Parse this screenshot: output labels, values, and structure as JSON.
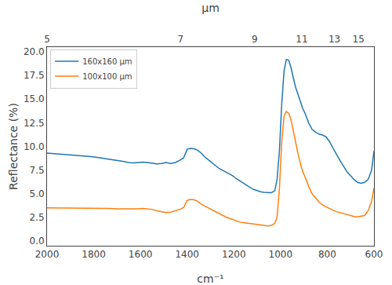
{
  "chart_data": {
    "type": "line",
    "x_label": "cm⁻¹",
    "x2_label": "μm",
    "y_label": "Reflectance (%)",
    "xlim": [
      2000,
      600
    ],
    "xticks": [
      2000,
      1800,
      1600,
      1400,
      1200,
      1000,
      800,
      600
    ],
    "x2lim": [
      2000,
      600
    ],
    "x2ticks": [
      {
        "value": 2000.0,
        "label": "5"
      },
      {
        "value": 1428.5714285714287,
        "label": "7"
      },
      {
        "value": 1111.111111111111,
        "label": "9"
      },
      {
        "value": 909.0909090909091,
        "label": "11"
      },
      {
        "value": 769.2307692307693,
        "label": "13"
      },
      {
        "value": 666.6666666666666,
        "label": "15"
      }
    ],
    "ylim": [
      -0.5,
      20.5
    ],
    "yticks": [
      {
        "value": 0.0,
        "label": "0.0"
      },
      2.5,
      {
        "value": 5.0,
        "label": "5.0"
      },
      7.5,
      {
        "value": 10.0,
        "label": "10.0"
      },
      12.5,
      {
        "value": 15.0,
        "label": "15.0"
      },
      17.5,
      {
        "value": 20.0,
        "label": "20.0"
      }
    ],
    "grid": false,
    "legend": "upper left",
    "x": [
      2000,
      1970,
      1940,
      1910,
      1880,
      1850,
      1820,
      1790,
      1760,
      1730,
      1700,
      1670,
      1650,
      1630,
      1610,
      1590,
      1570,
      1550,
      1530,
      1510,
      1490,
      1470,
      1450,
      1430,
      1415,
      1400,
      1385,
      1370,
      1355,
      1340,
      1325,
      1310,
      1295,
      1280,
      1265,
      1250,
      1235,
      1220,
      1205,
      1190,
      1175,
      1160,
      1145,
      1130,
      1115,
      1100,
      1085,
      1070,
      1055,
      1040,
      1025,
      1015,
      1005,
      995,
      985,
      975,
      965,
      955,
      945,
      935,
      925,
      915,
      905,
      895,
      880,
      865,
      850,
      835,
      820,
      805,
      790,
      775,
      760,
      745,
      730,
      715,
      700,
      685,
      670,
      655,
      640,
      625,
      610,
      600
    ],
    "series": [
      {
        "name": "160x160 μm",
        "color": "#1f77b4",
        "values": [
          9.3,
          9.25,
          9.2,
          9.15,
          9.05,
          9.0,
          8.95,
          8.85,
          8.75,
          8.65,
          8.55,
          8.4,
          8.3,
          8.25,
          8.3,
          8.35,
          8.3,
          8.2,
          8.15,
          8.2,
          8.3,
          8.2,
          8.3,
          8.55,
          8.8,
          9.7,
          9.8,
          9.75,
          9.6,
          9.3,
          8.9,
          8.6,
          8.3,
          8.0,
          7.7,
          7.5,
          7.3,
          7.1,
          6.9,
          6.6,
          6.35,
          6.1,
          5.85,
          5.65,
          5.45,
          5.3,
          5.2,
          5.15,
          5.1,
          5.1,
          5.3,
          6.5,
          9.5,
          14.5,
          18.0,
          19.2,
          19.1,
          18.3,
          17.2,
          16.2,
          15.5,
          14.8,
          14.0,
          13.5,
          12.5,
          11.8,
          11.5,
          11.3,
          11.2,
          11.0,
          10.5,
          9.8,
          9.1,
          8.5,
          7.9,
          7.3,
          6.9,
          6.5,
          6.2,
          6.1,
          6.2,
          6.5,
          7.5,
          9.5
        ]
      },
      {
        "name": "100x100 μm",
        "color": "#ff7f0e",
        "values": [
          3.5,
          3.5,
          3.5,
          3.5,
          3.5,
          3.5,
          3.5,
          3.5,
          3.45,
          3.45,
          3.4,
          3.4,
          3.35,
          3.35,
          3.4,
          3.45,
          3.4,
          3.35,
          3.2,
          3.1,
          3.0,
          3.05,
          3.2,
          3.35,
          3.55,
          4.3,
          4.4,
          4.35,
          4.2,
          3.9,
          3.7,
          3.5,
          3.35,
          3.1,
          2.9,
          2.7,
          2.55,
          2.4,
          2.25,
          2.1,
          2.0,
          1.95,
          1.9,
          1.85,
          1.8,
          1.75,
          1.7,
          1.65,
          1.6,
          1.65,
          1.85,
          2.5,
          5.5,
          10.5,
          13.2,
          13.7,
          13.5,
          12.8,
          11.5,
          10.3,
          9.2,
          8.2,
          7.3,
          6.8,
          5.8,
          5.0,
          4.5,
          4.1,
          3.8,
          3.6,
          3.4,
          3.25,
          3.1,
          3.0,
          2.9,
          2.75,
          2.65,
          2.6,
          2.55,
          2.6,
          2.7,
          3.2,
          4.2,
          5.6
        ]
      }
    ]
  }
}
